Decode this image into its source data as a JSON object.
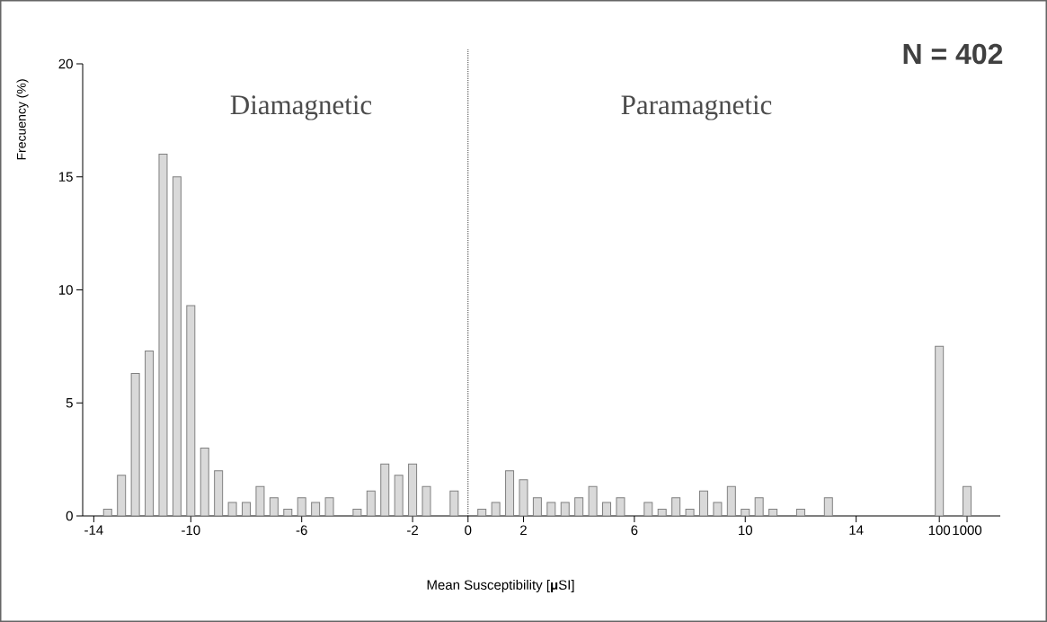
{
  "chart_data": {
    "type": "bar",
    "xlabel": "Mean Susceptibility [**μ**SI]",
    "ylabel": "Frecuency (%)",
    "categories": [
      "-14",
      null,
      null,
      null,
      null,
      null,
      null,
      "-10",
      null,
      null,
      null,
      null,
      null,
      null,
      null,
      "-6",
      null,
      null,
      null,
      null,
      null,
      null,
      null,
      "-2",
      null,
      null,
      null,
      "0",
      null,
      null,
      null,
      "2",
      null,
      null,
      null,
      null,
      null,
      null,
      null,
      "6",
      null,
      null,
      null,
      null,
      null,
      null,
      null,
      "10",
      null,
      null,
      null,
      null,
      null,
      null,
      null,
      "14",
      null,
      null,
      null,
      null,
      null,
      "100",
      null,
      "1000"
    ],
    "values": [
      null,
      0.3,
      1.8,
      6.3,
      7.3,
      16.0,
      15.0,
      9.3,
      3.0,
      2.0,
      0.6,
      0.6,
      1.3,
      0.8,
      0.3,
      0.8,
      0.6,
      0.8,
      null,
      0.3,
      1.1,
      2.3,
      1.8,
      2.3,
      1.3,
      null,
      1.1,
      null,
      0.3,
      0.6,
      2.0,
      1.6,
      0.8,
      0.6,
      0.6,
      0.8,
      1.3,
      0.6,
      0.8,
      null,
      0.6,
      0.3,
      0.8,
      0.3,
      1.1,
      0.6,
      1.3,
      0.3,
      0.8,
      0.3,
      null,
      0.3,
      null,
      0.8,
      null,
      null,
      null,
      null,
      null,
      null,
      null,
      7.5,
      null,
      1.3
    ],
    "color": "#d9d9d9",
    "ylim": [
      0,
      20
    ],
    "yticks": [
      0,
      5,
      10,
      15,
      20
    ],
    "ref_lines": [
      {
        "axis": "x",
        "value": "0",
        "line_style": "dotted",
        "color": "#404040"
      }
    ],
    "annotations": [
      "Diamagnetic",
      "Paramagnetic",
      "**N = 402**"
    ]
  }
}
